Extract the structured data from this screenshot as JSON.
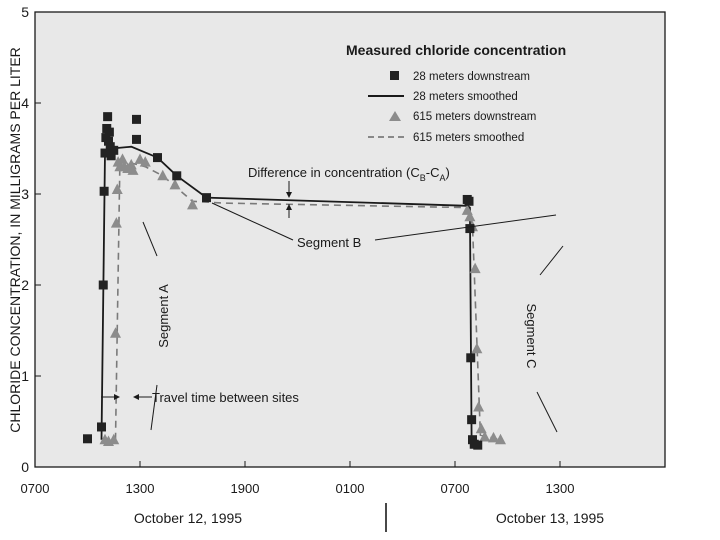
{
  "chart_data": {
    "type": "line",
    "ylabel": "CHLORIDE CONCENTRATION, IN MILLIGRAMS PER LITER",
    "ylim": [
      0,
      5
    ],
    "xlim": [
      7,
      43
    ],
    "yticks": [
      0,
      1,
      2,
      3,
      4,
      5
    ],
    "xticks": [
      {
        "x": 7,
        "label": "0700"
      },
      {
        "x": 13,
        "label": "1300"
      },
      {
        "x": 19,
        "label": "1900"
      },
      {
        "x": 25,
        "label": "0100"
      },
      {
        "x": 31,
        "label": "0700"
      },
      {
        "x": 37,
        "label": "1300"
      }
    ],
    "date_labels": {
      "day1": "October 12, 1995",
      "day2": "October 13, 1995"
    },
    "legend": {
      "title": "Measured chloride concentration",
      "position": "top-right",
      "entries": [
        {
          "label": "28 meters downstream",
          "marker": "square"
        },
        {
          "label": "28 meters smoothed",
          "marker": "solid-line"
        },
        {
          "label": "615 meters downstream",
          "marker": "triangle"
        },
        {
          "label": "615 meters smoothed",
          "marker": "dashed-line"
        }
      ]
    },
    "annotations": {
      "difference": "Difference in concentration (C",
      "sub_b": "B",
      "dash": "-C",
      "sub_a": "A",
      "close": ")",
      "segment_b": "Segment B",
      "segment_a": "Segment A",
      "segment_c": "Segment C",
      "travel_time": "Travel time between sites"
    },
    "series": [
      {
        "name": "28 meters downstream",
        "marker": "square",
        "points": [
          [
            10.0,
            0.31
          ],
          [
            10.8,
            0.44
          ],
          [
            10.9,
            2.0
          ],
          [
            10.95,
            3.03
          ],
          [
            11.0,
            3.45
          ],
          [
            11.05,
            3.62
          ],
          [
            11.1,
            3.72
          ],
          [
            11.15,
            3.85
          ],
          [
            11.2,
            3.58
          ],
          [
            11.25,
            3.68
          ],
          [
            11.3,
            3.52
          ],
          [
            11.35,
            3.42
          ],
          [
            11.5,
            3.48
          ],
          [
            12.8,
            3.82
          ],
          [
            12.8,
            3.6
          ],
          [
            14.0,
            3.4
          ],
          [
            15.1,
            3.2
          ],
          [
            16.8,
            2.96
          ],
          [
            31.7,
            2.94
          ],
          [
            31.8,
            2.92
          ],
          [
            31.85,
            2.62
          ],
          [
            31.9,
            1.2
          ],
          [
            31.95,
            0.52
          ],
          [
            32.0,
            0.3
          ],
          [
            32.1,
            0.25
          ],
          [
            32.3,
            0.24
          ]
        ]
      },
      {
        "name": "28 meters smoothed",
        "style": "solid",
        "points": [
          [
            10.8,
            0.3
          ],
          [
            11.0,
            3.45
          ],
          [
            11.4,
            3.5
          ],
          [
            12.5,
            3.52
          ],
          [
            14.0,
            3.4
          ],
          [
            15.1,
            3.2
          ],
          [
            16.8,
            2.96
          ],
          [
            31.7,
            2.87
          ],
          [
            31.85,
            2.85
          ],
          [
            31.95,
            0.3
          ],
          [
            32.3,
            0.25
          ]
        ]
      },
      {
        "name": "615 meters downstream",
        "marker": "triangle",
        "points": [
          [
            11.0,
            0.3
          ],
          [
            11.2,
            0.28
          ],
          [
            11.5,
            0.3
          ],
          [
            11.6,
            1.47
          ],
          [
            11.65,
            2.68
          ],
          [
            11.7,
            3.05
          ],
          [
            11.75,
            3.35
          ],
          [
            11.85,
            3.3
          ],
          [
            12.0,
            3.38
          ],
          [
            12.1,
            3.3
          ],
          [
            12.3,
            3.28
          ],
          [
            12.5,
            3.32
          ],
          [
            12.6,
            3.26
          ],
          [
            13.0,
            3.38
          ],
          [
            13.3,
            3.35
          ],
          [
            14.3,
            3.2
          ],
          [
            15.0,
            3.1
          ],
          [
            16.0,
            2.88
          ],
          [
            31.7,
            2.82
          ],
          [
            31.85,
            2.75
          ],
          [
            32.0,
            2.64
          ],
          [
            32.15,
            2.18
          ],
          [
            32.25,
            1.3
          ],
          [
            32.35,
            0.66
          ],
          [
            32.5,
            0.42
          ],
          [
            32.7,
            0.33
          ],
          [
            33.2,
            0.32
          ],
          [
            33.6,
            0.3
          ]
        ]
      },
      {
        "name": "615 meters smoothed",
        "style": "dashed",
        "points": [
          [
            11.6,
            0.3
          ],
          [
            11.85,
            3.35
          ],
          [
            12.3,
            3.35
          ],
          [
            13.3,
            3.3
          ],
          [
            14.3,
            3.2
          ],
          [
            16.0,
            2.92
          ],
          [
            17.8,
            2.9
          ],
          [
            31.7,
            2.85
          ],
          [
            32.0,
            2.65
          ],
          [
            32.45,
            0.35
          ],
          [
            33.6,
            0.3
          ]
        ]
      }
    ]
  }
}
